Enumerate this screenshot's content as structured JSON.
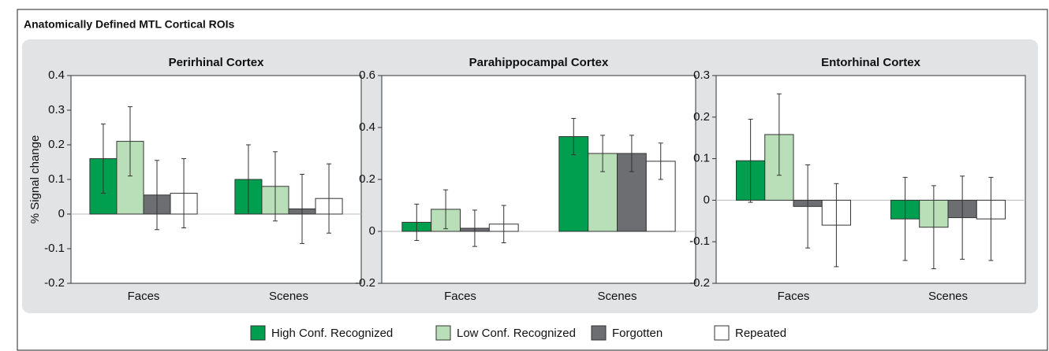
{
  "title": "Anatomically Defined MTL Cortical ROIs",
  "chart_data": [
    {
      "type": "bar",
      "title": "Perirhinal Cortex",
      "y_label": "% Signal change",
      "categories": [
        "Faces",
        "Scenes"
      ],
      "ylim": [
        -0.2,
        0.4
      ],
      "yticks": [
        -0.2,
        -0.1,
        0,
        0.1,
        0.2,
        0.3,
        0.4
      ],
      "series": [
        {
          "name": "High Conf. Recognized",
          "color": "#009e4f",
          "values": [
            0.16,
            0.1
          ],
          "errors": [
            0.1,
            0.1
          ]
        },
        {
          "name": "Low Conf. Recognized",
          "color": "#b9dfb9",
          "values": [
            0.21,
            0.08
          ],
          "errors": [
            0.1,
            0.1
          ]
        },
        {
          "name": "Forgotten",
          "color": "#6d6e71",
          "values": [
            0.055,
            0.015
          ],
          "errors": [
            0.1,
            0.1
          ]
        },
        {
          "name": "Repeated",
          "color": "#ffffff",
          "values": [
            0.06,
            0.045
          ],
          "errors": [
            0.1,
            0.1
          ]
        }
      ]
    },
    {
      "type": "bar",
      "title": "Parahippocampal Cortex",
      "categories": [
        "Faces",
        "Scenes"
      ],
      "ylim": [
        -0.2,
        0.6
      ],
      "yticks": [
        -0.2,
        0,
        0.2,
        0.4,
        0.6
      ],
      "series": [
        {
          "color": "#009e4f",
          "values": [
            0.035,
            0.365
          ],
          "errors": [
            0.07,
            0.07
          ]
        },
        {
          "color": "#b9dfb9",
          "values": [
            0.085,
            0.3
          ],
          "errors": [
            0.075,
            0.07
          ]
        },
        {
          "color": "#6d6e71",
          "values": [
            0.012,
            0.3
          ],
          "errors": [
            0.07,
            0.07
          ]
        },
        {
          "color": "#ffffff",
          "values": [
            0.028,
            0.27
          ],
          "errors": [
            0.072,
            0.07
          ]
        }
      ]
    },
    {
      "type": "bar",
      "title": "Entorhinal Cortex",
      "categories": [
        "Faces",
        "Scenes"
      ],
      "ylim": [
        -0.2,
        0.3
      ],
      "yticks": [
        -0.2,
        -0.1,
        0,
        0.1,
        0.2,
        0.3
      ],
      "series": [
        {
          "color": "#009e4f",
          "values": [
            0.095,
            -0.045
          ],
          "errors": [
            0.1,
            0.1
          ]
        },
        {
          "color": "#b9dfb9",
          "values": [
            0.158,
            -0.065
          ],
          "errors": [
            0.098,
            0.1
          ]
        },
        {
          "color": "#6d6e71",
          "values": [
            -0.015,
            -0.042
          ],
          "errors": [
            0.1,
            0.1
          ]
        },
        {
          "color": "#ffffff",
          "values": [
            -0.06,
            -0.045
          ],
          "errors": [
            0.1,
            0.1
          ]
        }
      ]
    }
  ]
}
